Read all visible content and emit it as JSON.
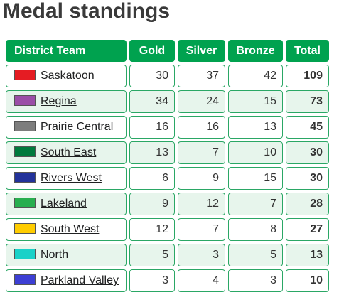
{
  "title": "Medal standings",
  "headers": {
    "team": "District Team",
    "gold": "Gold",
    "silver": "Silver",
    "bronze": "Bronze",
    "total": "Total"
  },
  "rows": [
    {
      "team": "Saskatoon",
      "color": "#e51c23",
      "gold": "30",
      "silver": "37",
      "bronze": "42",
      "total": "109"
    },
    {
      "team": "Regina",
      "color": "#9b4ea7",
      "gold": "34",
      "silver": "24",
      "bronze": "15",
      "total": "73"
    },
    {
      "team": "Prairie Central",
      "color": "#7d7d7d",
      "gold": "16",
      "silver": "16",
      "bronze": "13",
      "total": "45"
    },
    {
      "team": "South East",
      "color": "#007a3d",
      "gold": "13",
      "silver": "7",
      "bronze": "10",
      "total": "30"
    },
    {
      "team": "Rivers West",
      "color": "#23329a",
      "gold": "6",
      "silver": "9",
      "bronze": "15",
      "total": "30"
    },
    {
      "team": "Lakeland",
      "color": "#27ae4f",
      "gold": "9",
      "silver": "12",
      "bronze": "7",
      "total": "28"
    },
    {
      "team": "South West",
      "color": "#ffcc00",
      "gold": "12",
      "silver": "7",
      "bronze": "8",
      "total": "27"
    },
    {
      "team": "North",
      "color": "#19d1c8",
      "gold": "5",
      "silver": "3",
      "bronze": "5",
      "total": "13"
    },
    {
      "team": "Parkland Valley",
      "color": "#3d3fd4",
      "gold": "3",
      "silver": "4",
      "bronze": "3",
      "total": "10"
    }
  ]
}
